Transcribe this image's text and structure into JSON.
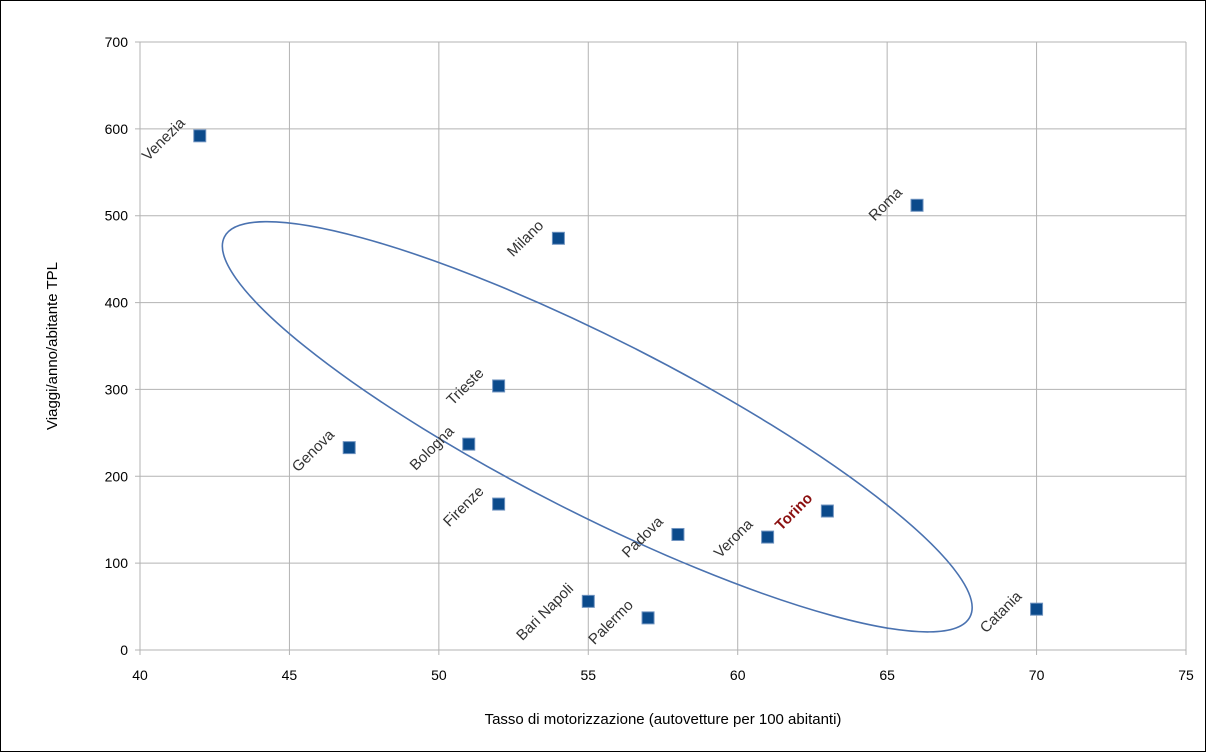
{
  "chart_data": {
    "type": "scatter",
    "title": "",
    "xlabel": "Tasso di motorizzazione (autovetture per 100 abitanti)",
    "ylabel": "Viaggi/anno/abitante TPL",
    "xlim": [
      40,
      75
    ],
    "ylim": [
      0,
      700
    ],
    "xticks": [
      40,
      45,
      50,
      55,
      60,
      65,
      70,
      75
    ],
    "yticks": [
      0,
      100,
      200,
      300,
      400,
      500,
      600,
      700
    ],
    "grid": true,
    "marker": "square",
    "colors": {
      "marker": "#0b4a8b",
      "gridline": "#b3b3b3",
      "ellipse": "#4a72b0",
      "label": "#333333",
      "highlight": "#8b1010"
    },
    "points": [
      {
        "label": "Venezia",
        "x": 42,
        "y": 592
      },
      {
        "label": "Roma",
        "x": 66,
        "y": 512
      },
      {
        "label": "Milano",
        "x": 54,
        "y": 474
      },
      {
        "label": "Trieste",
        "x": 52,
        "y": 304
      },
      {
        "label": "Genova",
        "x": 47,
        "y": 233
      },
      {
        "label": "Bologna",
        "x": 51,
        "y": 237
      },
      {
        "label": "Firenze",
        "x": 52,
        "y": 168
      },
      {
        "label": "Torino",
        "x": 63,
        "y": 160,
        "highlight": true
      },
      {
        "label": "Padova",
        "x": 58,
        "y": 133
      },
      {
        "label": "Verona",
        "x": 61,
        "y": 130
      },
      {
        "label": "Bari Napoli",
        "x": 55,
        "y": 56
      },
      {
        "label": "Palermo",
        "x": 57,
        "y": 37
      },
      {
        "label": "Catania",
        "x": 70,
        "y": 47
      }
    ],
    "annotations": [
      {
        "type": "ellipse",
        "center": [
          55.3,
          257
        ],
        "radius_x_units": 14.0,
        "radius_y_units": 250,
        "rotation_deg": 27
      }
    ]
  }
}
